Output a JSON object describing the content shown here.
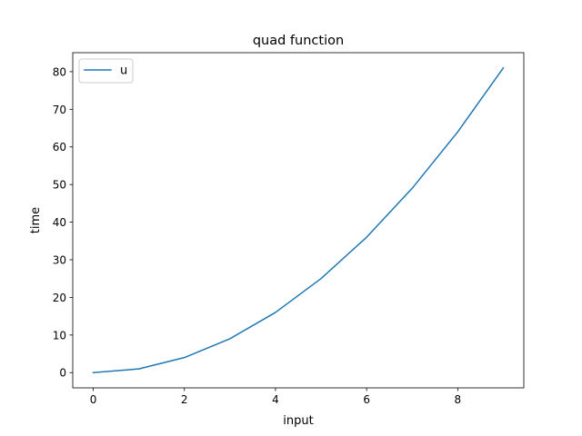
{
  "chart_data": {
    "type": "line",
    "title": "quad function",
    "xlabel": "input",
    "ylabel": "time",
    "xlim": [
      -0.45,
      9.45
    ],
    "ylim": [
      -4.05,
      85.05
    ],
    "x_ticks": [
      0,
      2,
      4,
      6,
      8
    ],
    "y_ticks": [
      0,
      10,
      20,
      30,
      40,
      50,
      60,
      70,
      80
    ],
    "x_tick_labels": [
      "0",
      "2",
      "4",
      "6",
      "8"
    ],
    "y_tick_labels": [
      "0",
      "10",
      "20",
      "30",
      "40",
      "50",
      "60",
      "70",
      "80"
    ],
    "grid": false,
    "legend": {
      "position": "top-left"
    },
    "series": [
      {
        "name": "u",
        "color": "#1f77b4",
        "x": [
          0,
          1,
          2,
          3,
          4,
          5,
          6,
          7,
          8,
          9
        ],
        "y": [
          0,
          1,
          4,
          9,
          16,
          25,
          36,
          49,
          64,
          81
        ]
      }
    ]
  }
}
